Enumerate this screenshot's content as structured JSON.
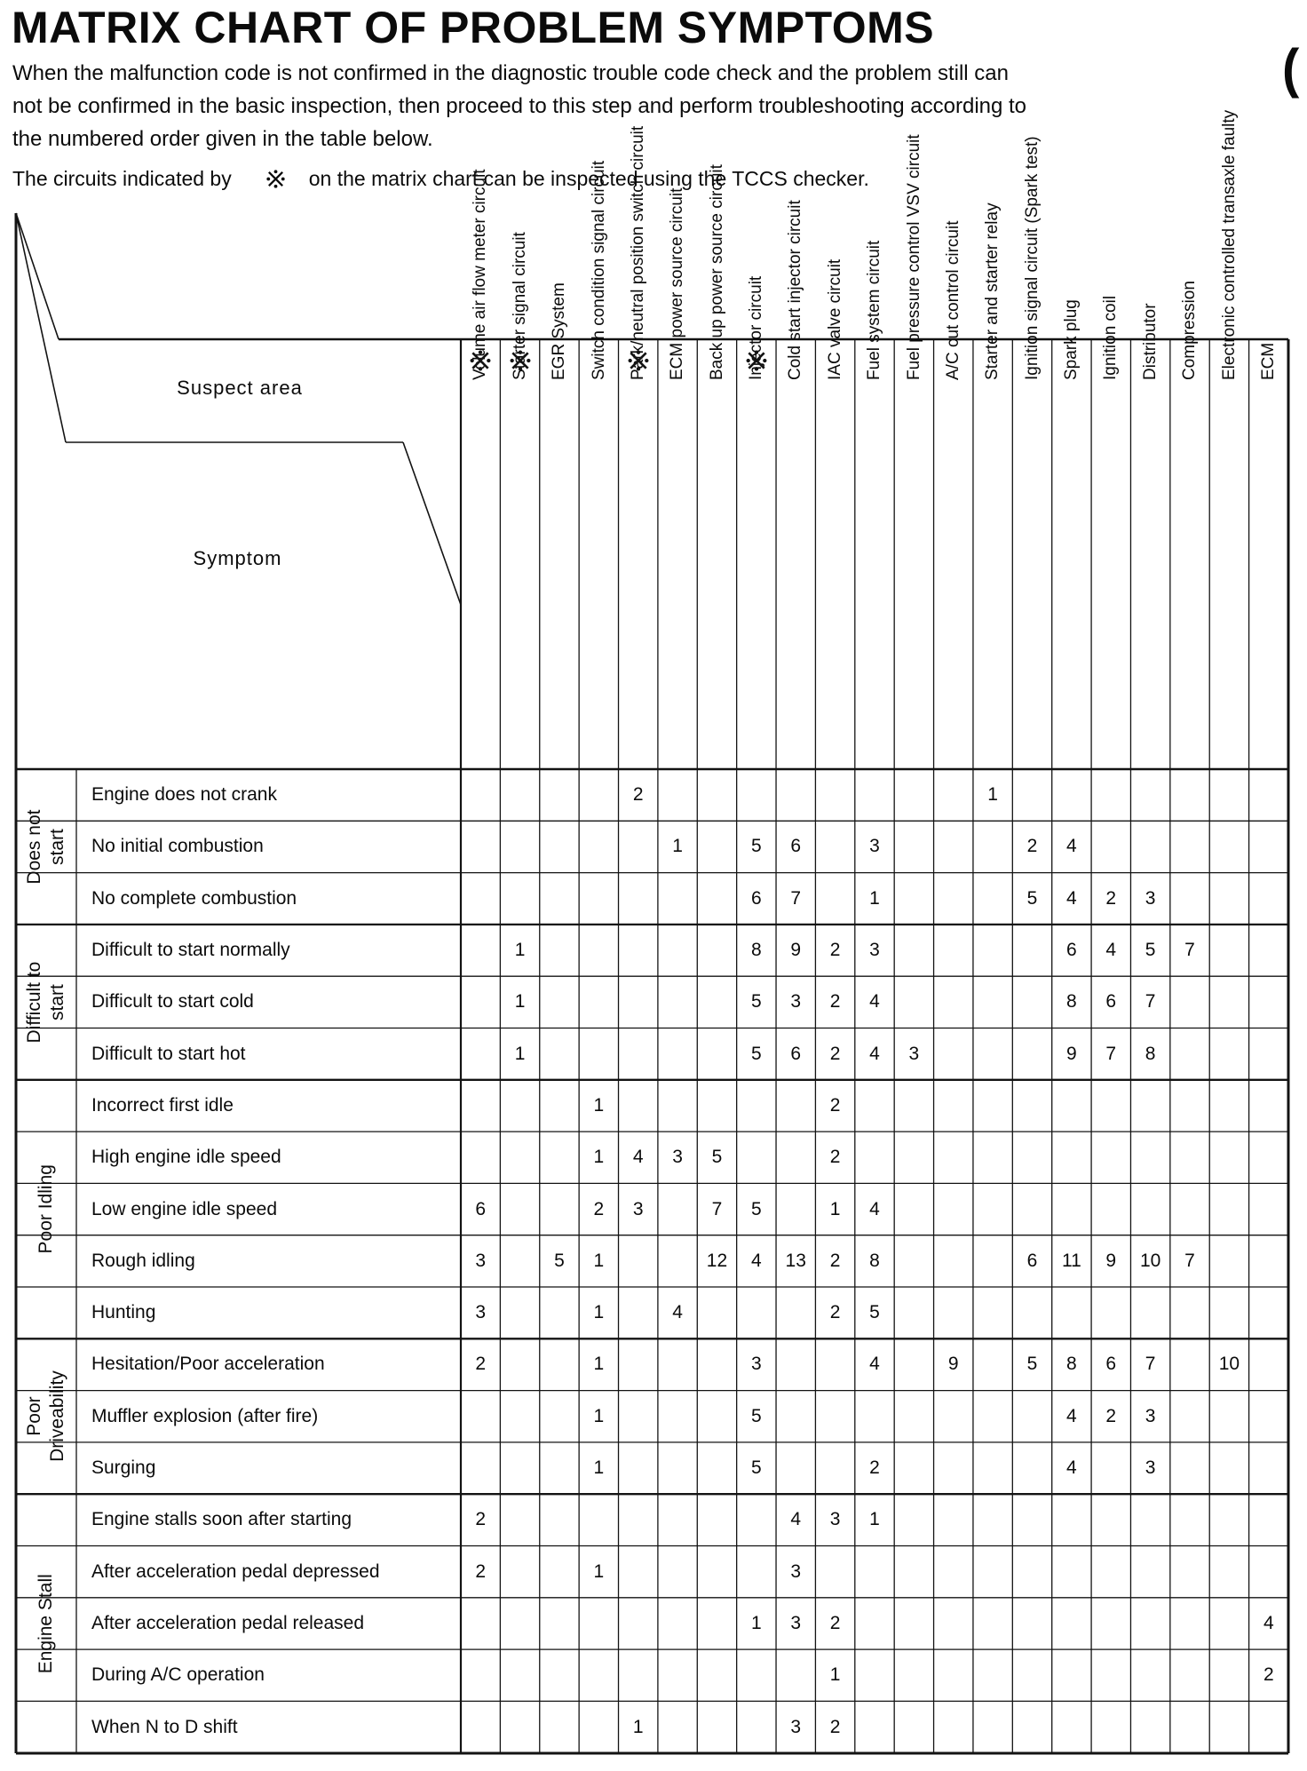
{
  "page": {
    "title": "MATRIX CHART OF PROBLEM SYMPTOMS",
    "intro_lines": [
      "When the malfunction code is not confirmed in the diagnostic trouble code check and the problem still can",
      "not be confirmed in the basic inspection, then proceed to this step and perform troubleshooting according to",
      "the numbered order given in the table below."
    ],
    "note": {
      "prefix": "The circuits indicated by",
      "symbol": "※",
      "suffix": "on the matrix chart can be inspected using the TCCS checker."
    },
    "artifact": "("
  },
  "matrix": {
    "corner": {
      "top_label": "Suspect area",
      "bottom_label": "Symptom"
    },
    "checker_mark": "※",
    "columns": [
      {
        "label": "Volume air flow meter circuit",
        "marked": true
      },
      {
        "label": "Starter signal circuit",
        "marked": true
      },
      {
        "label": "EGR System",
        "marked": false
      },
      {
        "label": "Switch condition signal circuit",
        "marked": false
      },
      {
        "label": "Park/neutral position switch circuit",
        "marked": true
      },
      {
        "label": "ECM power source circuit",
        "marked": false
      },
      {
        "label": "Back up power source circuit",
        "marked": false
      },
      {
        "label": "Injector circuit",
        "marked": true
      },
      {
        "label": "Cold start injector circuit",
        "marked": false
      },
      {
        "label": "IAC valve circuit",
        "marked": false
      },
      {
        "label": "Fuel system circuit",
        "marked": false
      },
      {
        "label": "Fuel pressure control VSV circuit",
        "marked": false
      },
      {
        "label": "A/C cut control circuit",
        "marked": false
      },
      {
        "label": "Starter and starter relay",
        "marked": false
      },
      {
        "label": "Ignition signal circuit (Spark test)",
        "marked": false
      },
      {
        "label": "Spark plug",
        "marked": false
      },
      {
        "label": "Ignition coil",
        "marked": false
      },
      {
        "label": "Distributor",
        "marked": false
      },
      {
        "label": "Compression",
        "marked": false
      },
      {
        "label": "Electronic controlled transaxle faulty",
        "marked": false
      },
      {
        "label": "ECM",
        "marked": false
      }
    ],
    "groups": [
      {
        "label": "Does not start",
        "label_lines": [
          "Does not",
          "start"
        ],
        "rows": [
          {
            "label": "Engine does not crank",
            "cells": {
              "4": 2,
              "13": 1
            }
          },
          {
            "label": "No initial combustion",
            "cells": {
              "5": 1,
              "7": 5,
              "8": 6,
              "10": 3,
              "14": 2,
              "15": 4
            }
          },
          {
            "label": "No complete combustion",
            "cells": {
              "7": 6,
              "8": 7,
              "10": 1,
              "14": 5,
              "15": 4,
              "16": 2,
              "17": 3
            }
          }
        ]
      },
      {
        "label": "Difficult to start",
        "label_lines": [
          "Difficult to",
          "start"
        ],
        "rows": [
          {
            "label": "Difficult to start normally",
            "cells": {
              "1": 1,
              "7": 8,
              "8": 9,
              "9": 2,
              "10": 3,
              "15": 6,
              "16": 4,
              "17": 5,
              "18": 7
            }
          },
          {
            "label": "Difficult to start cold",
            "cells": {
              "1": 1,
              "7": 5,
              "8": 3,
              "9": 2,
              "10": 4,
              "15": 8,
              "16": 6,
              "17": 7
            }
          },
          {
            "label": "Difficult to start hot",
            "cells": {
              "1": 1,
              "7": 5,
              "8": 6,
              "9": 2,
              "10": 4,
              "11": 3,
              "15": 9,
              "16": 7,
              "17": 8
            }
          }
        ]
      },
      {
        "label": "Poor Idling",
        "label_lines": [
          "Poor Idling"
        ],
        "rows": [
          {
            "label": "Incorrect first idle",
            "cells": {
              "3": 1,
              "9": 2
            }
          },
          {
            "label": "High engine idle speed",
            "cells": {
              "3": 1,
              "4": 4,
              "5": 3,
              "6": 5,
              "9": 2
            }
          },
          {
            "label": "Low engine idle speed",
            "cells": {
              "0": 6,
              "3": 2,
              "4": 3,
              "6": 7,
              "7": 5,
              "9": 1,
              "10": 4
            }
          },
          {
            "label": "Rough idling",
            "cells": {
              "0": 3,
              "2": 5,
              "3": 1,
              "6": 12,
              "7": 4,
              "8": 13,
              "9": 2,
              "10": 8,
              "14": 6,
              "15": 11,
              "16": 9,
              "17": 10,
              "18": 7
            }
          },
          {
            "label": "Hunting",
            "cells": {
              "0": 3,
              "3": 1,
              "5": 4,
              "9": 2,
              "10": 5
            }
          }
        ]
      },
      {
        "label": "Poor Driveability",
        "label_lines": [
          "Poor",
          "Driveability"
        ],
        "rows": [
          {
            "label": "Hesitation/Poor acceleration",
            "cells": {
              "0": 2,
              "3": 1,
              "7": 3,
              "10": 4,
              "12": 9,
              "14": 5,
              "15": 8,
              "16": 6,
              "17": 7,
              "19": 10
            }
          },
          {
            "label": "Muffler explosion (after fire)",
            "cells": {
              "3": 1,
              "7": 5,
              "15": 4,
              "16": 2,
              "17": 3
            }
          },
          {
            "label": "Surging",
            "cells": {
              "3": 1,
              "7": 5,
              "10": 2,
              "15": 4,
              "17": 3
            }
          }
        ]
      },
      {
        "label": "Engine Stall",
        "label_lines": [
          "Engine Stall"
        ],
        "rows": [
          {
            "label": "Engine stalls soon after starting",
            "cells": {
              "0": 2,
              "8": 4,
              "9": 3,
              "10": 1
            }
          },
          {
            "label": "After acceleration pedal depressed",
            "cells": {
              "0": 2,
              "3": 1,
              "8": 3
            }
          },
          {
            "label": "After acceleration pedal released",
            "cells": {
              "7": 1,
              "8": 3,
              "9": 2,
              "20": 4
            }
          },
          {
            "label": "During A/C operation",
            "cells": {
              "9": 1,
              "20": 2
            }
          },
          {
            "label": "When N to D shift",
            "cells": {
              "4": 1,
              "8": 3,
              "9": 2
            }
          }
        ]
      }
    ]
  }
}
